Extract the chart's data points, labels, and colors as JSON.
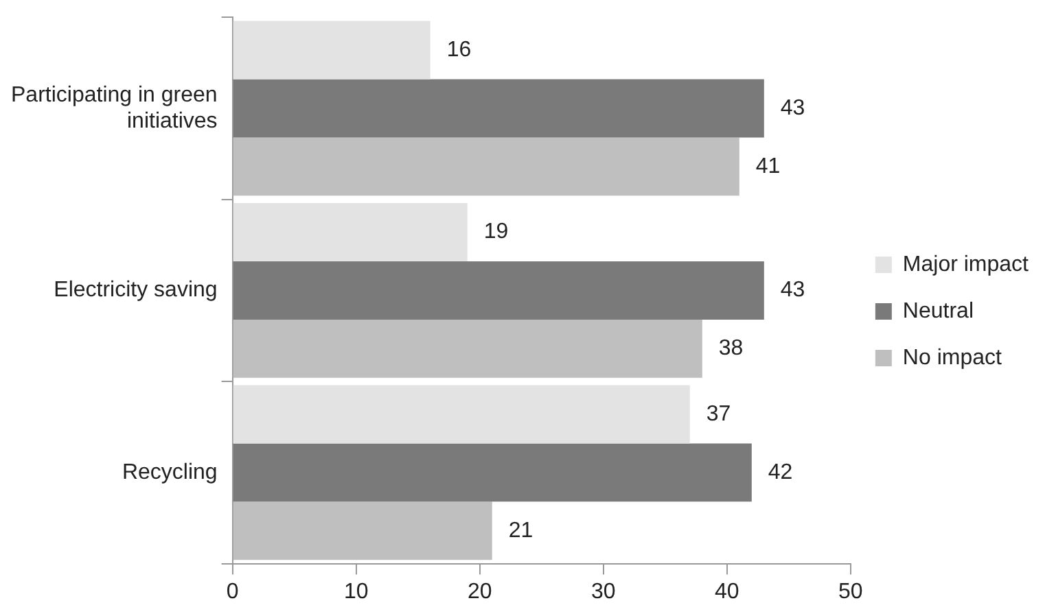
{
  "chart_data": {
    "type": "bar",
    "orientation": "horizontal",
    "categories": [
      "Participating in green initiatives",
      "Electricity saving",
      "Recycling"
    ],
    "series": [
      {
        "name": "Major impact",
        "color": "#e3e3e3",
        "values": [
          16,
          19,
          37
        ]
      },
      {
        "name": "Neutral",
        "color": "#7a7a7a",
        "values": [
          43,
          43,
          42
        ]
      },
      {
        "name": "No impact",
        "color": "#bfbfbf",
        "values": [
          41,
          38,
          21
        ]
      }
    ],
    "xlim": [
      0,
      50
    ],
    "xticks": [
      0,
      10,
      20,
      30,
      40,
      50
    ],
    "data_labels": true,
    "grid": false,
    "legend": "right"
  }
}
